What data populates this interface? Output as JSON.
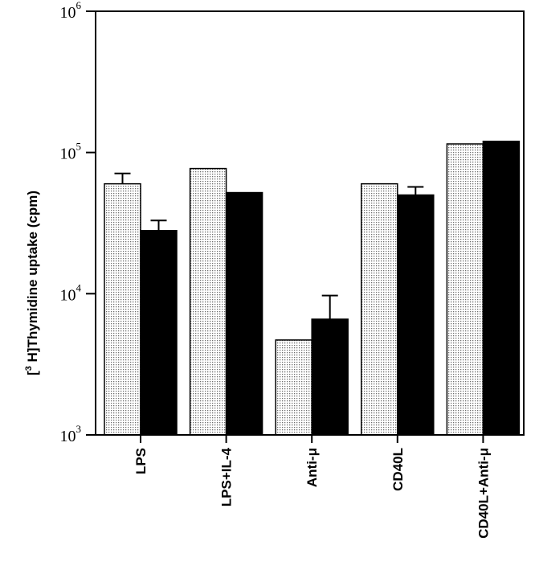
{
  "chart_data": {
    "type": "bar",
    "ylabel": {
      "prefix": "[",
      "sup": "3",
      "rest": " H]Thymidine uptake (cpm)"
    },
    "xlabel": "",
    "yscale": "log",
    "ylim": [
      1000,
      1000000
    ],
    "yticks": [
      {
        "base": "10",
        "exp": "3"
      },
      {
        "base": "10",
        "exp": "4"
      },
      {
        "base": "10",
        "exp": "5"
      },
      {
        "base": "10",
        "exp": "6"
      }
    ],
    "categories": [
      "LPS",
      "LPS+IL-4",
      "Anti-μ",
      "CD40L",
      "CD40L+Anti-μ"
    ],
    "series": [
      {
        "fill": "dotted",
        "values": [
          60000,
          77000,
          4700,
          60000,
          115000
        ],
        "errors_upper": [
          71000,
          null,
          null,
          null,
          null
        ]
      },
      {
        "fill": "#000000",
        "values": [
          28000,
          52000,
          6600,
          50000,
          120000
        ],
        "errors_upper": [
          33000,
          null,
          9700,
          57000,
          null
        ]
      }
    ],
    "grid": false,
    "legend": "none"
  }
}
